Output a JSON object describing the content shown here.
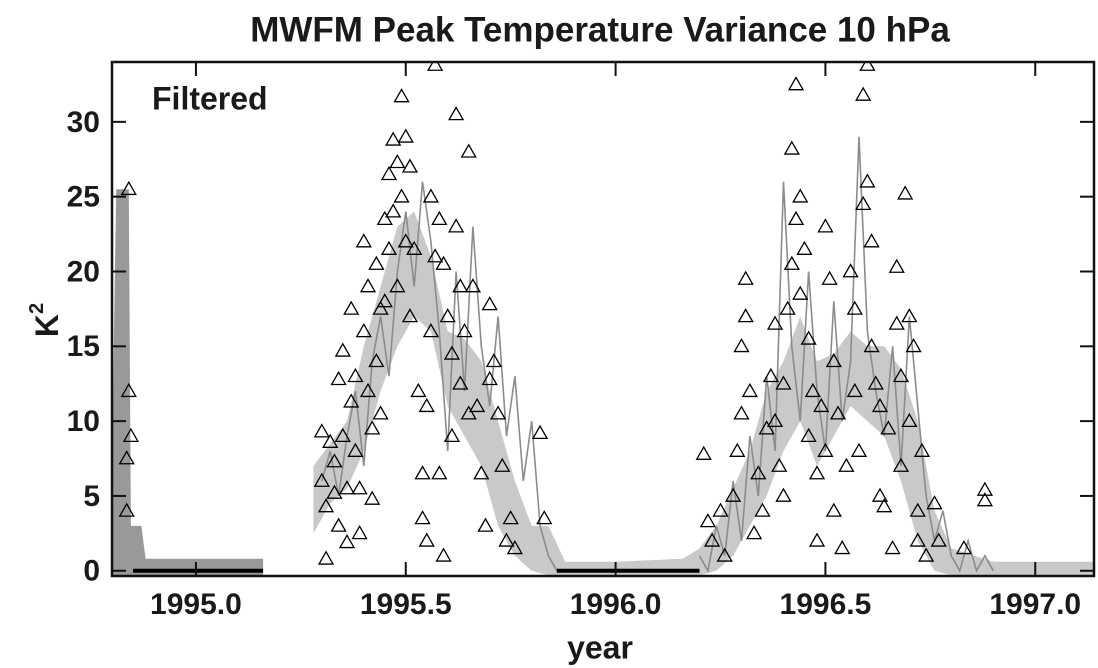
{
  "chart_data": {
    "type": "scatter",
    "title": "MWFM Peak Temperature Variance  10 hPa",
    "annotation": "Filtered",
    "x_label": "year",
    "y_label": "K",
    "y_label_sup": "2",
    "xlim": [
      1994.8,
      1997.14
    ],
    "ylim": [
      -0.35,
      34
    ],
    "xticks": [
      {
        "value": 1995.0,
        "label": "1995.0"
      },
      {
        "value": 1995.5,
        "label": "1995.5"
      },
      {
        "value": 1996.0,
        "label": "1996.0"
      },
      {
        "value": 1996.5,
        "label": "1996.5"
      },
      {
        "value": 1997.0,
        "label": "1997.0"
      }
    ],
    "yticks": [
      0,
      5,
      10,
      15,
      20,
      25,
      30
    ],
    "bands": [
      {
        "color": "#c9c9c9",
        "x": [
          1995.28,
          1995.32,
          1995.36,
          1995.4,
          1995.44,
          1995.48,
          1995.52,
          1995.56,
          1995.6,
          1995.64,
          1995.68,
          1995.72,
          1995.76,
          1995.8,
          1995.84,
          1995.88,
          1996.0,
          1996.16,
          1996.2,
          1996.24,
          1996.28,
          1996.32,
          1996.36,
          1996.4,
          1996.44,
          1996.48,
          1996.52,
          1996.56,
          1996.6,
          1996.64,
          1996.68,
          1996.72,
          1996.76,
          1996.8,
          1996.9,
          1997.14
        ],
        "lower": [
          2.5,
          4.5,
          5.5,
          8,
          12,
          15,
          17,
          16,
          11,
          9,
          7,
          3,
          1,
          0,
          -0.3,
          -0.3,
          -0.3,
          -0.3,
          -0.3,
          0,
          1,
          3,
          5,
          8,
          10,
          7,
          9,
          11,
          10,
          9,
          6,
          2,
          0,
          -0.3,
          -0.3,
          -0.3
        ],
        "upper": [
          7,
          8.5,
          10,
          15,
          19,
          23,
          24,
          21,
          16,
          15.5,
          14,
          10,
          6,
          3,
          3,
          0.6,
          0.6,
          0.8,
          1.5,
          3,
          5.5,
          8,
          12,
          14,
          17,
          14,
          14.5,
          16,
          15,
          15,
          13.5,
          10,
          4,
          1.5,
          0.6,
          0.6
        ]
      },
      {
        "color": "#999999",
        "x": [
          1994.8,
          1994.81,
          1994.84,
          1994.845,
          1994.87,
          1994.88,
          1995.16
        ],
        "lower": [
          -0.3,
          -0.3,
          -0.3,
          -0.3,
          -0.3,
          -0.3,
          -0.3
        ],
        "upper": [
          7.5,
          25.5,
          25.5,
          3,
          3,
          0.8,
          0.8
        ]
      }
    ],
    "lines": [
      {
        "color": "#8c8c8c",
        "x": [
          1995.3,
          1995.32,
          1995.34,
          1995.36,
          1995.38,
          1995.4,
          1995.42,
          1995.44,
          1995.46,
          1995.48,
          1995.5,
          1995.52,
          1995.54,
          1995.56,
          1995.58,
          1995.6,
          1995.62,
          1995.64,
          1995.66,
          1995.68,
          1995.7,
          1995.72,
          1995.74,
          1995.76,
          1995.78,
          1995.8,
          1995.82,
          1995.84,
          1995.86
        ],
        "values": [
          6,
          8,
          5,
          9,
          12,
          7,
          14,
          17,
          13,
          20,
          24,
          19,
          26,
          22,
          16,
          8,
          20,
          12,
          23,
          15,
          11,
          17,
          9,
          13,
          6,
          10,
          3,
          1,
          0
        ]
      },
      {
        "color": "#8c8c8c",
        "x": [
          1996.2,
          1996.22,
          1996.24,
          1996.26,
          1996.28,
          1996.3,
          1996.32,
          1996.34,
          1996.36,
          1996.38,
          1996.4,
          1996.42,
          1996.44,
          1996.46,
          1996.48,
          1996.5,
          1996.52,
          1996.54,
          1996.56,
          1996.58,
          1996.6,
          1996.62,
          1996.64,
          1996.66,
          1996.68,
          1996.7,
          1996.72,
          1996.74,
          1996.76,
          1996.78,
          1996.8,
          1996.82,
          1996.84,
          1996.86,
          1996.88,
          1996.9
        ],
        "values": [
          1,
          0,
          3,
          1,
          6,
          2,
          9,
          5,
          13,
          8,
          26,
          15,
          10,
          20,
          12,
          8,
          18,
          10,
          14,
          29,
          16,
          12,
          9,
          15,
          7,
          17,
          11,
          5,
          2,
          4,
          1,
          0,
          2,
          0,
          1,
          0
        ]
      },
      {
        "color": "#000000",
        "x": [
          1994.85,
          1995.16
        ],
        "values": [
          0,
          0
        ]
      },
      {
        "color": "#000000",
        "x": [
          1995.86,
          1996.2
        ],
        "values": [
          0,
          0
        ]
      }
    ],
    "points": {
      "color": "#000000",
      "x": [
        1994.84,
        1994.84,
        1994.835,
        1994.835,
        1994.845,
        1995.3,
        1995.3,
        1995.31,
        1995.31,
        1995.32,
        1995.33,
        1995.33,
        1995.34,
        1995.34,
        1995.35,
        1995.35,
        1995.36,
        1995.36,
        1995.37,
        1995.37,
        1995.38,
        1995.38,
        1995.39,
        1995.39,
        1995.4,
        1995.4,
        1995.41,
        1995.41,
        1995.42,
        1995.42,
        1995.43,
        1995.43,
        1995.44,
        1995.44,
        1995.45,
        1995.45,
        1995.46,
        1995.46,
        1995.47,
        1995.47,
        1995.48,
        1995.48,
        1995.49,
        1995.49,
        1995.5,
        1995.5,
        1995.51,
        1995.51,
        1995.52,
        1995.53,
        1995.54,
        1995.54,
        1995.55,
        1995.55,
        1995.56,
        1995.56,
        1995.57,
        1995.57,
        1995.58,
        1995.58,
        1995.59,
        1995.59,
        1995.6,
        1995.61,
        1995.61,
        1995.62,
        1995.62,
        1995.63,
        1995.63,
        1995.64,
        1995.65,
        1995.65,
        1995.66,
        1995.67,
        1995.68,
        1995.69,
        1995.7,
        1995.7,
        1995.71,
        1995.72,
        1995.73,
        1995.74,
        1995.75,
        1995.76,
        1995.82,
        1995.83,
        1996.21,
        1996.22,
        1996.23,
        1996.25,
        1996.26,
        1996.28,
        1996.29,
        1996.3,
        1996.3,
        1996.31,
        1996.31,
        1996.32,
        1996.33,
        1996.34,
        1996.35,
        1996.36,
        1996.37,
        1996.38,
        1996.38,
        1996.39,
        1996.4,
        1996.4,
        1996.41,
        1996.42,
        1996.42,
        1996.43,
        1996.43,
        1996.44,
        1996.44,
        1996.45,
        1996.46,
        1996.46,
        1996.47,
        1996.48,
        1996.48,
        1996.49,
        1996.5,
        1996.5,
        1996.51,
        1996.52,
        1996.52,
        1996.53,
        1996.54,
        1996.55,
        1996.56,
        1996.57,
        1996.57,
        1996.58,
        1996.59,
        1996.59,
        1996.6,
        1996.6,
        1996.61,
        1996.61,
        1996.62,
        1996.63,
        1996.63,
        1996.64,
        1996.65,
        1996.66,
        1996.67,
        1996.67,
        1996.68,
        1996.68,
        1996.69,
        1996.7,
        1996.7,
        1996.71,
        1996.72,
        1996.72,
        1996.73,
        1996.74,
        1996.76,
        1996.77,
        1996.83,
        1996.88,
        1996.88
      ],
      "y": [
        25.5,
        12,
        7.5,
        4,
        9,
        9.3,
        6,
        4.3,
        0.8,
        8.6,
        5.2,
        7.3,
        12.8,
        3,
        14.7,
        9,
        5.5,
        1.9,
        17.5,
        11.3,
        8,
        13,
        5.5,
        2.5,
        22,
        16,
        19,
        12,
        9.5,
        4.8,
        20.5,
        14,
        17.5,
        10.5,
        23.5,
        18,
        26.5,
        21.5,
        28.8,
        24,
        27.3,
        19,
        31.7,
        25,
        29,
        22,
        27,
        17,
        21.5,
        12,
        6.5,
        3.5,
        11,
        2,
        25,
        16,
        33.8,
        21,
        23.5,
        6.5,
        20.5,
        1,
        17,
        14.5,
        9,
        30.5,
        23,
        19,
        12.5,
        16,
        28,
        10.5,
        19,
        11,
        6.5,
        3,
        17.8,
        12.8,
        14,
        10.5,
        7,
        2,
        3.5,
        1.5,
        9.2,
        3.5,
        7.8,
        3.3,
        2,
        4,
        1,
        5,
        8,
        10.5,
        15,
        19.5,
        17,
        12,
        2.5,
        6.5,
        4,
        9.5,
        13,
        16.5,
        10,
        7,
        12.5,
        5,
        17.5,
        28.2,
        20.5,
        32.5,
        23.5,
        25,
        18.5,
        21.5,
        15.5,
        9,
        12,
        6.5,
        2,
        11,
        23,
        8,
        19.5,
        14,
        4,
        10.5,
        1.5,
        7,
        20,
        17.5,
        12,
        8,
        31.8,
        24.5,
        33.8,
        26,
        22,
        15,
        12.5,
        5,
        11,
        4.3,
        9.5,
        1.5,
        20.3,
        16.5,
        13,
        7,
        25.2,
        17,
        10,
        15,
        4,
        2,
        8,
        1,
        4.5,
        2,
        1.5,
        5.4,
        4.7
      ]
    }
  }
}
